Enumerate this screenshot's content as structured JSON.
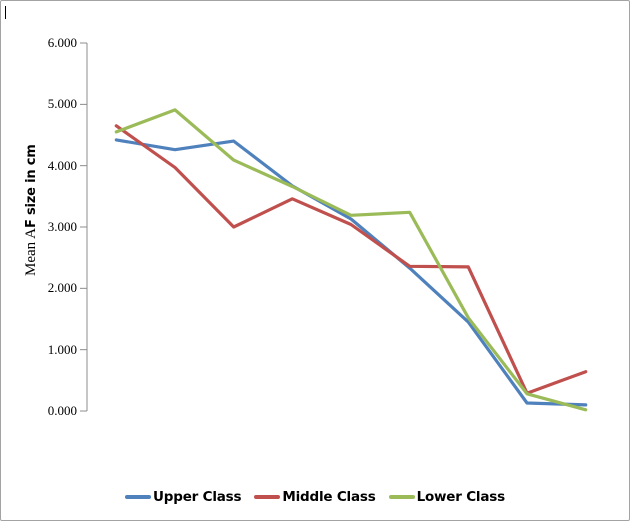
{
  "window": {
    "background": "#ffffff",
    "border_color": "#a3a3a3",
    "has_text_cursor": true
  },
  "chart_data": {
    "type": "line",
    "title": "",
    "ylabel_full": "Mean AF size in cm",
    "ylabel_serif_part": "Mean A",
    "ylabel_bold_part": "F size in cm",
    "ylim": [
      0,
      6
    ],
    "ytick_step": 1.0,
    "ytick_labels": [
      "6.000",
      "5.000",
      "4.000",
      "3.000",
      "2.000",
      "1.000",
      "0.000"
    ],
    "x_labels_visible": false,
    "n_points": 9,
    "grid": false,
    "axis_color": "#8c8c8c",
    "legend_position": "bottom",
    "series": [
      {
        "name": "Upper Class",
        "color": "#4F81BD",
        "values": [
          4.42,
          4.26,
          4.4,
          3.67,
          3.13,
          2.33,
          1.45,
          0.13,
          0.1
        ]
      },
      {
        "name": "Middle Class",
        "color": "#C0504D",
        "values": [
          4.65,
          3.97,
          3.0,
          3.46,
          3.04,
          2.36,
          2.35,
          0.29,
          0.64
        ]
      },
      {
        "name": "Lower Class",
        "color": "#9BBB59",
        "values": [
          4.55,
          4.91,
          4.09,
          3.66,
          3.19,
          3.24,
          1.52,
          0.28,
          0.02
        ]
      }
    ]
  }
}
